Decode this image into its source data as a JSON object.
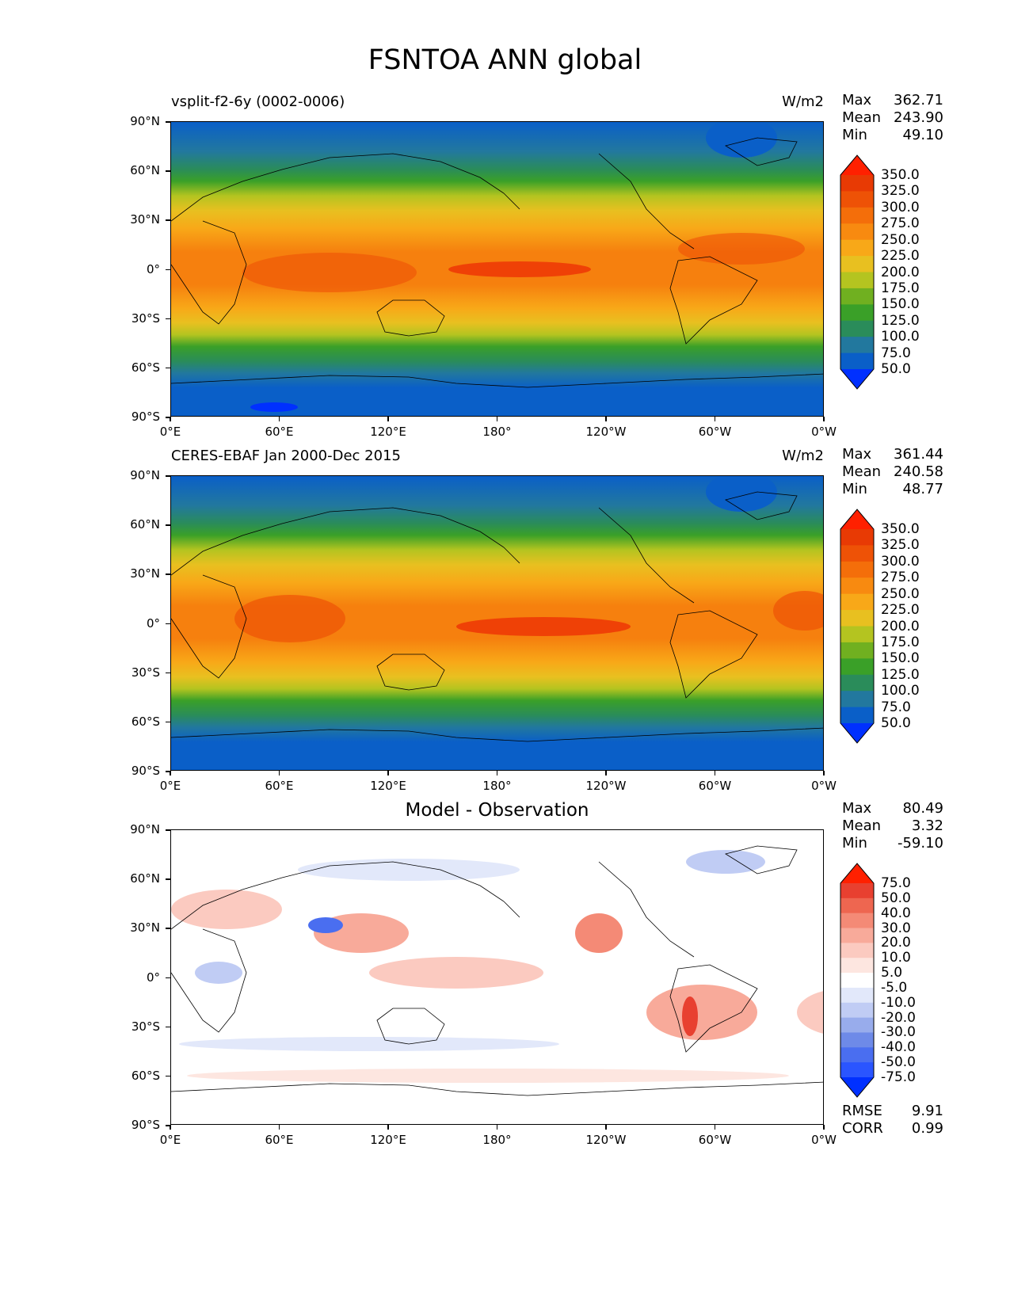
{
  "figure_title": "FSNTOA ANN global",
  "x_ticks": [
    "0°E",
    "60°E",
    "120°E",
    "180°",
    "120°W",
    "60°W",
    "0°W"
  ],
  "y_ticks": [
    "90°N",
    "60°N",
    "30°N",
    "0°",
    "30°S",
    "60°S",
    "90°S"
  ],
  "panels": [
    {
      "title_left": "vsplit-f2-6y (0002-0006)",
      "title_right": "W/m2",
      "title_center": "",
      "stats": {
        "max_label": "Max",
        "max": "362.71",
        "mean_label": "Mean",
        "mean": "243.90",
        "min_label": "Min",
        "min": "49.10"
      },
      "colorbar_labels": [
        "350.0",
        "325.0",
        "300.0",
        "275.0",
        "250.0",
        "225.0",
        "200.0",
        "175.0",
        "150.0",
        "125.0",
        "100.0",
        "75.0",
        "50.0"
      ]
    },
    {
      "title_left": "CERES-EBAF Jan 2000-Dec 2015",
      "title_right": "W/m2",
      "title_center": "",
      "stats": {
        "max_label": "Max",
        "max": "361.44",
        "mean_label": "Mean",
        "mean": "240.58",
        "min_label": "Min",
        "min": "48.77"
      },
      "colorbar_labels": [
        "350.0",
        "325.0",
        "300.0",
        "275.0",
        "250.0",
        "225.0",
        "200.0",
        "175.0",
        "150.0",
        "125.0",
        "100.0",
        "75.0",
        "50.0"
      ]
    },
    {
      "title_left": "",
      "title_right": "",
      "title_center": "Model - Observation",
      "stats": {
        "max_label": "Max",
        "max": "80.49",
        "mean_label": "Mean",
        "mean": "3.32",
        "min_label": "Min",
        "min": "-59.10"
      },
      "colorbar_labels": [
        "75.0",
        "50.0",
        "40.0",
        "30.0",
        "20.0",
        "10.0",
        "5.0",
        "-5.0",
        "-10.0",
        "-20.0",
        "-30.0",
        "-40.0",
        "-50.0",
        "-75.0"
      ],
      "rmse_label": "RMSE",
      "rmse": "9.91",
      "corr_label": "CORR",
      "corr": "0.99"
    }
  ],
  "colors": {
    "abs_scale": [
      "#0030ff",
      "#0a5fc8",
      "#22789e",
      "#2a8c5a",
      "#3aa028",
      "#70b020",
      "#b4c420",
      "#e8c020",
      "#f8a818",
      "#f88a10",
      "#f46e0a",
      "#ee5206",
      "#e83a04",
      "#ff2000"
    ],
    "diff_scale": [
      "#0030ff",
      "#2a55ff",
      "#4a6ef0",
      "#6e8ae8",
      "#98acec",
      "#c0ccf4",
      "#e2e8fa",
      "#ffffff",
      "#fde6e0",
      "#fbcac0",
      "#f8aa9a",
      "#f48a76",
      "#ee6650",
      "#e84030",
      "#ff2000"
    ]
  }
}
